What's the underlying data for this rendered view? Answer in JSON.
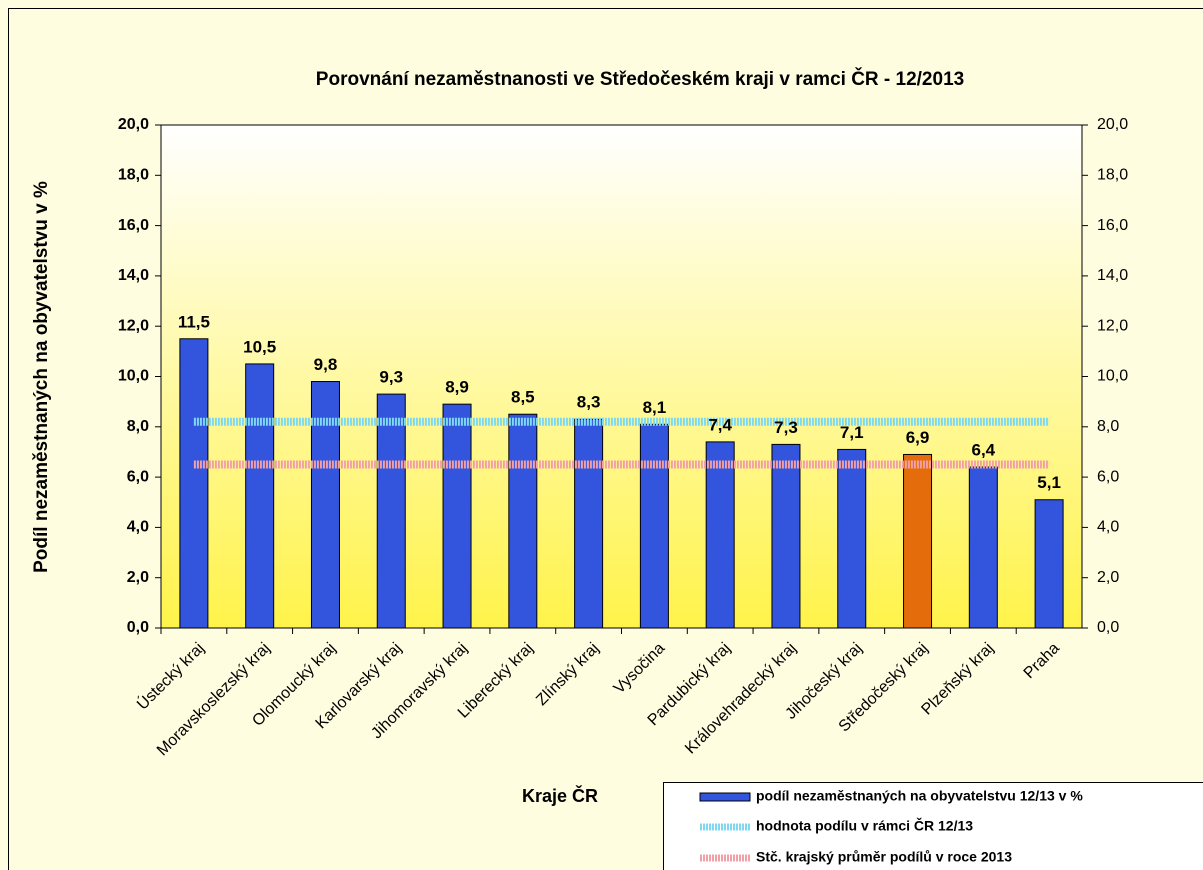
{
  "chart_data": {
    "type": "bar",
    "title": "Porovnání nezaměstnanosti ve Středočeském kraji v ramci ČR - 12/2013",
    "xlabel": "Kraje ČR",
    "ylabel": "Podíl nezaměstnaných na obyvatelstvu v %",
    "categories": [
      "Ústecký kraj",
      "Moravskoslezský kraj",
      "Olomoucký kraj",
      "Karlovarský kraj",
      "Jihomoravský kraj",
      "Liberecký kraj",
      "Zlínský kraj",
      "Vysočina",
      "Pardubický kraj",
      "Královehradecký kraj",
      "Jihočeský kraj",
      "Středočeský kraj",
      "Plzeňský kraj",
      "Praha"
    ],
    "series": [
      {
        "name": "podíl nezaměstnaných na obyvatelstvu 12/13 v %",
        "color": "#3355dd",
        "bar_colors": [
          "#3355dd",
          "#3355dd",
          "#3355dd",
          "#3355dd",
          "#3355dd",
          "#3355dd",
          "#3355dd",
          "#3355dd",
          "#3355dd",
          "#3355dd",
          "#3355dd",
          "#e46c0a",
          "#3355dd",
          "#3355dd"
        ],
        "values": [
          11.5,
          10.5,
          9.8,
          9.3,
          8.9,
          8.5,
          8.3,
          8.1,
          7.4,
          7.3,
          7.1,
          6.9,
          6.4,
          5.1
        ],
        "value_labels": [
          "11,5",
          "10,5",
          "9,8",
          "9,3",
          "8,9",
          "8,5",
          "8,3",
          "8,1",
          "7,4",
          "7,3",
          "7,1",
          "6,9",
          "6,4",
          "5,1"
        ]
      }
    ],
    "reference_lines": [
      {
        "name": "hodnota podílu v rámci ČR 12/13",
        "value": 8.2,
        "color": "#7fd8f2"
      },
      {
        "name": "Stč. krajský průměr podílů v roce 2013",
        "value": 6.5,
        "color": "#f2a0a8"
      }
    ],
    "ylim": [
      0,
      20
    ],
    "yticks": [
      {
        "value": 0,
        "label": "0,0"
      },
      {
        "value": 2,
        "label": "2,0"
      },
      {
        "value": 4,
        "label": "4,0"
      },
      {
        "value": 6,
        "label": "6,0"
      },
      {
        "value": 8,
        "label": "8,0"
      },
      {
        "value": 10,
        "label": "10,0"
      },
      {
        "value": 12,
        "label": "12,0"
      },
      {
        "value": 14,
        "label": "14,0"
      },
      {
        "value": 16,
        "label": "16,0"
      },
      {
        "value": 18,
        "label": "18,0"
      },
      {
        "value": 20,
        "label": "20,0"
      }
    ],
    "y2lim": [
      0,
      20
    ],
    "y2ticks": [
      {
        "value": 0,
        "label": "0,0"
      },
      {
        "value": 2,
        "label": "2,0"
      },
      {
        "value": 4,
        "label": "4,0"
      },
      {
        "value": 6,
        "label": "6,0"
      },
      {
        "value": 8,
        "label": "8,0"
      },
      {
        "value": 10,
        "label": "10,0"
      },
      {
        "value": 12,
        "label": "12,0"
      },
      {
        "value": 14,
        "label": "14,0"
      },
      {
        "value": 16,
        "label": "16,0"
      },
      {
        "value": 18,
        "label": "18,0"
      },
      {
        "value": 20,
        "label": "20,0"
      }
    ]
  }
}
